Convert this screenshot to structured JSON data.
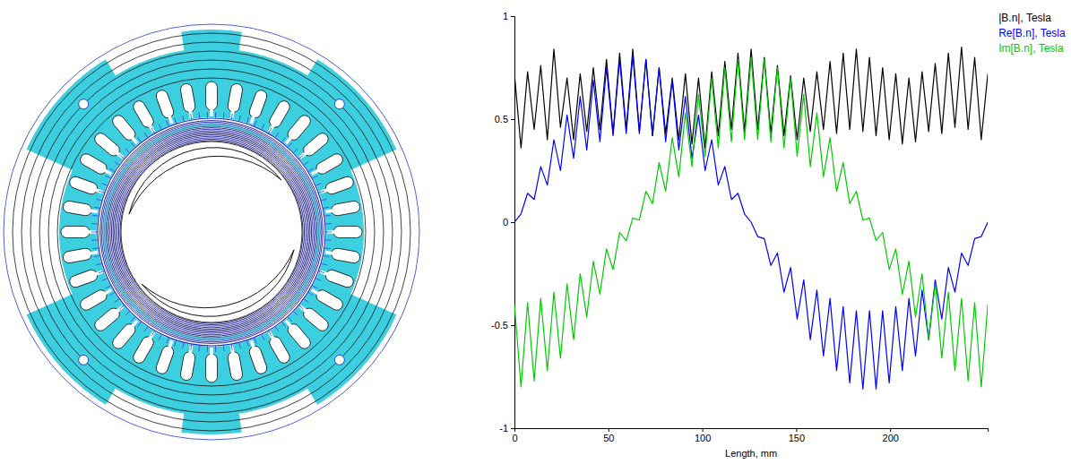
{
  "chart_data": {
    "type": "line",
    "xlabel": "Length, mm",
    "x": [
      0,
      3.5,
      7,
      10.5,
      14,
      17.5,
      21,
      24.5,
      28,
      31.5,
      35,
      38.5,
      42,
      45.5,
      49,
      52.5,
      56,
      59.5,
      63,
      66.5,
      70,
      73.5,
      77,
      80.5,
      84,
      87.5,
      91,
      94.5,
      98,
      101.5,
      105,
      108.5,
      112,
      115.5,
      119,
      122.5,
      126,
      129.5,
      133,
      136.5,
      140,
      143.5,
      147,
      150.5,
      154,
      157.5,
      161,
      164.5,
      168,
      171.5,
      175,
      178.5,
      182,
      185.5,
      189,
      192.5,
      196,
      199.5,
      203,
      206.5,
      210,
      213.5,
      217,
      220.5,
      224,
      227.5,
      231,
      234.5,
      238,
      241.5,
      245,
      248.5,
      252
    ],
    "series": [
      {
        "name": "|B.n|, Tesla",
        "color": "#000000",
        "values": [
          0.72,
          0.36,
          0.73,
          0.45,
          0.76,
          0.4,
          0.84,
          0.46,
          0.7,
          0.4,
          0.72,
          0.44,
          0.75,
          0.45,
          0.79,
          0.43,
          0.82,
          0.45,
          0.84,
          0.44,
          0.79,
          0.42,
          0.75,
          0.43,
          0.7,
          0.4,
          0.72,
          0.38,
          0.7,
          0.36,
          0.73,
          0.42,
          0.78,
          0.45,
          0.82,
          0.44,
          0.84,
          0.45,
          0.8,
          0.43,
          0.76,
          0.42,
          0.71,
          0.4,
          0.7,
          0.44,
          0.73,
          0.45,
          0.78,
          0.43,
          0.82,
          0.45,
          0.84,
          0.44,
          0.8,
          0.42,
          0.75,
          0.4,
          0.72,
          0.38,
          0.7,
          0.39,
          0.73,
          0.44,
          0.77,
          0.43,
          0.82,
          0.46,
          0.85,
          0.45,
          0.8,
          0.4,
          0.72
        ]
      },
      {
        "name": "Re[B.n], Tesla",
        "color": "#0000ff",
        "values": [
          0.0,
          0.04,
          0.14,
          0.11,
          0.27,
          0.18,
          0.4,
          0.25,
          0.52,
          0.31,
          0.61,
          0.35,
          0.69,
          0.39,
          0.75,
          0.42,
          0.79,
          0.43,
          0.81,
          0.43,
          0.79,
          0.42,
          0.75,
          0.39,
          0.69,
          0.35,
          0.61,
          0.31,
          0.52,
          0.25,
          0.4,
          0.18,
          0.27,
          0.11,
          0.14,
          0.04,
          0.0,
          -0.07,
          -0.08,
          -0.21,
          -0.15,
          -0.34,
          -0.22,
          -0.47,
          -0.28,
          -0.57,
          -0.33,
          -0.65,
          -0.37,
          -0.72,
          -0.41,
          -0.78,
          -0.43,
          -0.81,
          -0.43,
          -0.81,
          -0.43,
          -0.78,
          -0.41,
          -0.72,
          -0.37,
          -0.65,
          -0.33,
          -0.57,
          -0.28,
          -0.47,
          -0.22,
          -0.34,
          -0.15,
          -0.21,
          -0.08,
          -0.07,
          0.0
        ]
      },
      {
        "name": "Im[B.n], Tesla",
        "color": "#00cc00",
        "values": [
          -0.4,
          -0.8,
          -0.39,
          -0.77,
          -0.37,
          -0.72,
          -0.34,
          -0.66,
          -0.3,
          -0.57,
          -0.25,
          -0.46,
          -0.19,
          -0.35,
          -0.13,
          -0.23,
          -0.05,
          -0.09,
          0.02,
          0.01,
          0.15,
          0.09,
          0.29,
          0.15,
          0.41,
          0.22,
          0.53,
          0.27,
          0.62,
          0.32,
          0.7,
          0.36,
          0.75,
          0.39,
          0.79,
          0.4,
          0.8,
          0.4,
          0.79,
          0.39,
          0.75,
          0.36,
          0.7,
          0.32,
          0.62,
          0.27,
          0.53,
          0.22,
          0.41,
          0.15,
          0.29,
          0.09,
          0.15,
          0.01,
          0.02,
          -0.09,
          -0.05,
          -0.23,
          -0.13,
          -0.35,
          -0.19,
          -0.46,
          -0.25,
          -0.57,
          -0.3,
          -0.66,
          -0.34,
          -0.72,
          -0.37,
          -0.77,
          -0.39,
          -0.8,
          -0.4
        ]
      }
    ],
    "xlim": [
      0,
      252
    ],
    "ylim": [
      -1,
      1
    ],
    "xticks": [
      0,
      50,
      100,
      150,
      200
    ],
    "yticks": [
      -1,
      -0.5,
      0,
      0.5,
      1
    ],
    "legend": "right",
    "grid": false
  }
}
